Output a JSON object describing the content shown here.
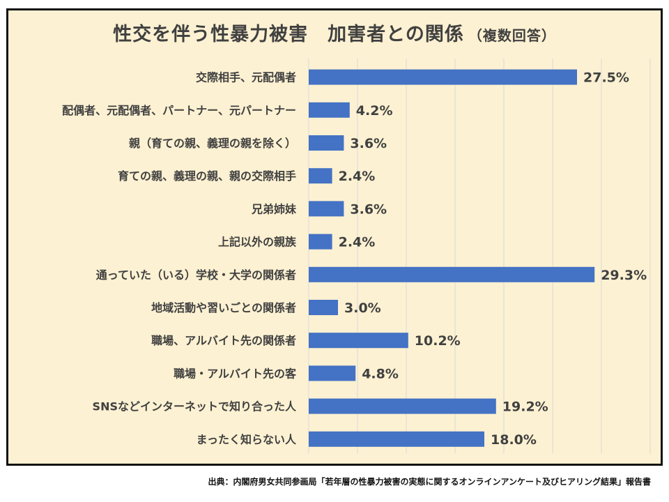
{
  "chart_data": {
    "type": "bar",
    "orientation": "horizontal",
    "title": "性交を伴う性暴力被害　加害者との関係",
    "subtitle": "（複数回答）",
    "categories": [
      "交際相手、元配偶者",
      "配偶者、元配偶者、パートナー、元パートナー",
      "親（育ての親、義理の親を除く）",
      "育ての親、義理の親、親の交際相手",
      "兄弟姉妹",
      "上記以外の親族",
      "通っていた（いる）学校・大学の関係者",
      "地域活動や習いごとの関係者",
      "職場、アルバイト先の関係者",
      "職場・アルバイト先の客",
      "SNSなどインターネットで知り合った人",
      "まったく知らない人"
    ],
    "values": [
      27.5,
      4.2,
      3.6,
      2.4,
      3.6,
      2.4,
      29.3,
      3.0,
      10.2,
      4.8,
      19.2,
      18.0
    ],
    "value_labels": [
      "27.5%",
      "4.2%",
      "3.6%",
      "2.4%",
      "3.6%",
      "2.4%",
      "29.3%",
      "3.0%",
      "10.2%",
      "4.8%",
      "19.2%",
      "18.0%"
    ],
    "xlim": [
      0,
      35
    ],
    "grid": true,
    "colors": {
      "bar": "#4472c4",
      "background": "#fcf1d2",
      "grid": "#d9d9d9",
      "text": "#404040"
    }
  },
  "source": "出典：内閣府男女共同参画局「若年層の性暴力被害の実態に関するオンラインアンケート及びヒアリング結果」報告書"
}
